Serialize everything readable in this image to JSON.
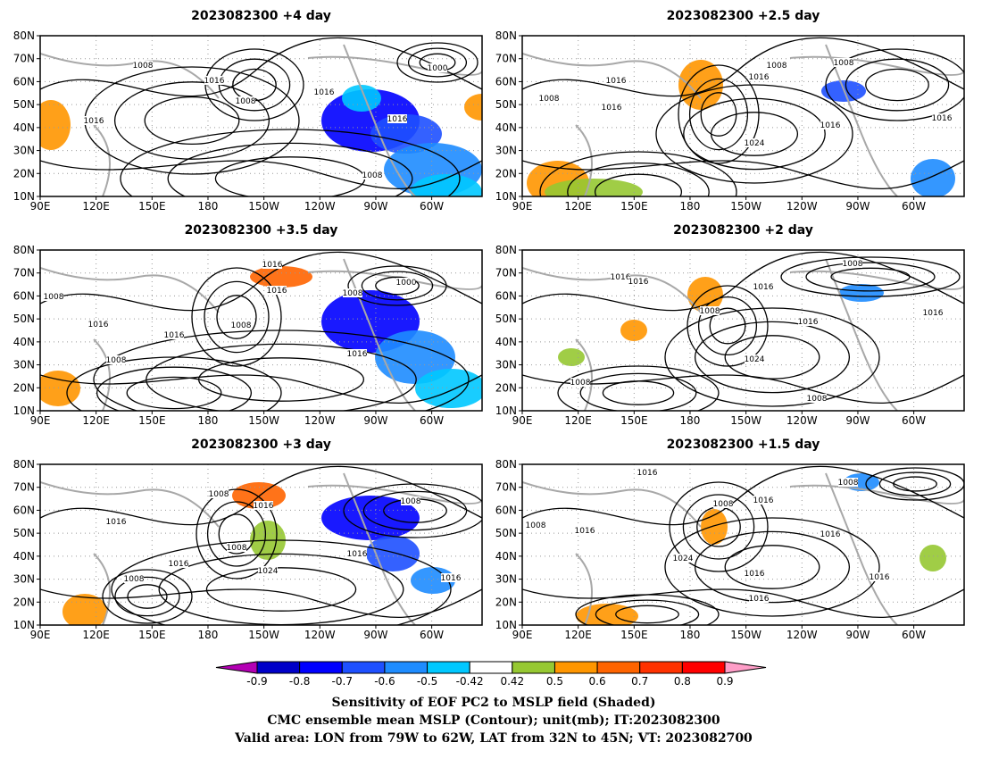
{
  "panels": [
    {
      "title": "2023082300  +4 day",
      "contours": [
        {
          "label": "1008",
          "shape": "ring"
        },
        {
          "label": "1016",
          "shape": "ring"
        },
        {
          "label": "1008",
          "shape": "ring"
        },
        {
          "label": "1016",
          "shape": "ring"
        },
        {
          "label": "1000",
          "shape": "ring"
        },
        {
          "label": "1016",
          "shape": "ring"
        },
        {
          "label": "1016",
          "shape": "ring"
        },
        {
          "label": "1008",
          "shape": "ring"
        }
      ]
    },
    {
      "title": "2023082300  +2.5  day",
      "contours": [
        {
          "label": "1008",
          "shape": "ring"
        },
        {
          "label": "1016",
          "shape": "ring"
        },
        {
          "label": "1008",
          "shape": "ring"
        },
        {
          "label": "1016",
          "shape": "ring"
        },
        {
          "label": "1016",
          "shape": "ring"
        },
        {
          "label": "1024",
          "shape": "ring"
        },
        {
          "label": "1008",
          "shape": "ring"
        },
        {
          "label": "1016",
          "shape": "ring"
        },
        {
          "label": "1016",
          "shape": "ring"
        }
      ]
    },
    {
      "title": "2023082300  +3.5  day",
      "contours": [
        {
          "label": "1016",
          "shape": "ring"
        },
        {
          "label": "1016",
          "shape": "ring"
        },
        {
          "label": "1008",
          "shape": "ring"
        },
        {
          "label": "1016",
          "shape": "ring"
        },
        {
          "label": "1008",
          "shape": "ring"
        },
        {
          "label": "1016",
          "shape": "ring"
        },
        {
          "label": "1008",
          "shape": "ring"
        },
        {
          "label": "1000",
          "shape": "ring"
        },
        {
          "label": "1008",
          "shape": "ring"
        },
        {
          "label": "1016",
          "shape": "ring"
        }
      ]
    },
    {
      "title": "2023082300  +2  day",
      "contours": [
        {
          "label": "1016",
          "shape": "ring"
        },
        {
          "label": "1016",
          "shape": "ring"
        },
        {
          "label": "1016",
          "shape": "ring"
        },
        {
          "label": "1008",
          "shape": "ring"
        },
        {
          "label": "1008",
          "shape": "ring"
        },
        {
          "label": "1016",
          "shape": "ring"
        },
        {
          "label": "1016",
          "shape": "ring"
        },
        {
          "label": "1024",
          "shape": "ring"
        },
        {
          "label": "1008",
          "shape": "ring"
        },
        {
          "label": "1008",
          "shape": "ring"
        }
      ]
    },
    {
      "title": "2023082300  +3  day",
      "contours": [
        {
          "label": "1008",
          "shape": "ring"
        },
        {
          "label": "1016",
          "shape": "ring"
        },
        {
          "label": "1016",
          "shape": "ring"
        },
        {
          "label": "1008",
          "shape": "ring"
        },
        {
          "label": "1016",
          "shape": "ring"
        },
        {
          "label": "1008",
          "shape": "ring"
        },
        {
          "label": "1016",
          "shape": "ring"
        },
        {
          "label": "1024",
          "shape": "ring"
        },
        {
          "label": "1008",
          "shape": "ring"
        },
        {
          "label": "1016",
          "shape": "ring"
        }
      ]
    },
    {
      "title": "2023082300  +1.5  day",
      "contours": [
        {
          "label": "1016",
          "shape": "ring"
        },
        {
          "label": "1008",
          "shape": "ring"
        },
        {
          "label": "1016",
          "shape": "ring"
        },
        {
          "label": "1016",
          "shape": "ring"
        },
        {
          "label": "1008",
          "shape": "ring"
        },
        {
          "label": "1016",
          "shape": "ring"
        },
        {
          "label": "1024",
          "shape": "ring"
        },
        {
          "label": "1016",
          "shape": "ring"
        },
        {
          "label": "1016",
          "shape": "ring"
        },
        {
          "label": "1008",
          "shape": "ring"
        },
        {
          "label": "1016",
          "shape": "ring"
        }
      ]
    }
  ],
  "axes": {
    "lat_ticks": [
      "80N",
      "70N",
      "60N",
      "50N",
      "40N",
      "30N",
      "20N",
      "10N"
    ],
    "lon_ticks": [
      "90E",
      "120E",
      "150E",
      "180",
      "150W",
      "120W",
      "90W",
      "60W"
    ]
  },
  "colorbar": {
    "ticks": [
      "-0.9",
      "-0.8",
      "-0.7",
      "-0.6",
      "-0.5",
      "-0.42",
      "0.42",
      "0.5",
      "0.6",
      "0.7",
      "0.8",
      "0.9"
    ],
    "colors": [
      "#b400b4",
      "#0000c8",
      "#0000ff",
      "#1e50ff",
      "#1e8cff",
      "#00c8ff",
      "#ffffff",
      "#96c832",
      "#ff9600",
      "#ff6400",
      "#ff3200",
      "#ff0000",
      "#ff9ec8"
    ]
  },
  "caption": [
    "Sensitivity of EOF PC2 to MSLP field (Shaded)",
    "CMC ensemble mean MSLP (Contour); unit(mb); IT:2023082300",
    "Valid area: LON from 79W to 62W, LAT from 32N to 45N; VT: 2023082700"
  ]
}
